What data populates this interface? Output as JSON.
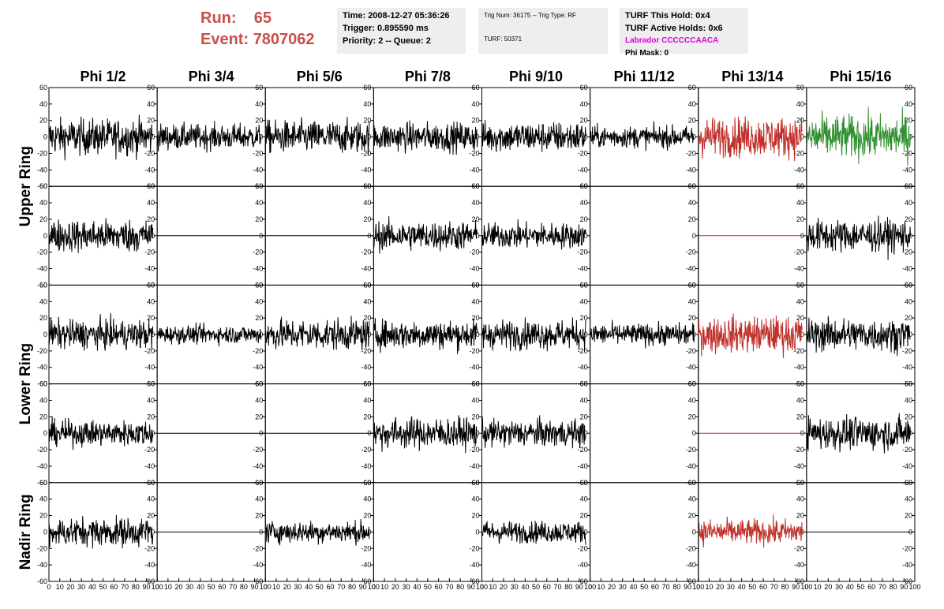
{
  "header": {
    "run_label": "Run:",
    "run_value": "65",
    "event_label": "Event:",
    "event_value": "7807062",
    "time": "Time: 2008-12-27 05:36:26",
    "trigger": "Trigger: 0.895590 ms",
    "priority": "Priority: 2 -- Queue: 2",
    "trig_num": "Trig Num: 36175 -- Trig Type: RF",
    "turf": "TURF: 50371",
    "turf_this_hold": "TURF This Hold: 0x4",
    "turf_active_holds": "TURF Active Holds: 0x6",
    "labrador": "Labrador CCCCCCAACA",
    "phi_mask": "Phi Mask: 0"
  },
  "colors": {
    "run_text": "#c9504a",
    "labrador": "#e000e0",
    "trace_default": "#000000",
    "trace_red": "#c0302b",
    "trace_green": "#2f8f2f"
  },
  "chart_data": {
    "type": "line",
    "columns": [
      "Phi 1/2",
      "Phi 3/4",
      "Phi 5/6",
      "Phi 7/8",
      "Phi 9/10",
      "Phi 11/12",
      "Phi 13/14",
      "Phi 15/16"
    ],
    "rows": [
      {
        "label": "Upper Ring",
        "rows": 2
      },
      {
        "label": "Lower Ring",
        "rows": 2
      },
      {
        "label": "Nadir Ring",
        "rows": 1
      }
    ],
    "xlim": [
      0,
      100
    ],
    "ylim": [
      -60,
      60
    ],
    "y_ticks": [
      -60,
      -40,
      -20,
      0,
      20,
      40,
      60
    ],
    "x_ticks": [
      0,
      10,
      20,
      30,
      40,
      50,
      60,
      70,
      80,
      90,
      100
    ],
    "panels": [
      [
        "noise",
        "noise",
        "noise",
        "noise",
        "noise",
        "noise",
        "noise-red",
        "noise-green"
      ],
      [
        "noise",
        "flat",
        "flat",
        "noise",
        "noise",
        "none",
        "flat-red",
        "noise"
      ],
      [
        "noise",
        "noise",
        "noise",
        "noise",
        "noise",
        "noise",
        "noise-red",
        "noise"
      ],
      [
        "noise",
        "flat",
        "flat",
        "noise",
        "noise",
        "none",
        "flat-red",
        "noise"
      ],
      [
        "noise",
        "flat",
        "noise",
        "none",
        "noise",
        "none",
        "noise-red",
        "flat"
      ]
    ],
    "amplitudes": [
      [
        20,
        14,
        18,
        16,
        17,
        12,
        22,
        24
      ],
      [
        18,
        0,
        0,
        16,
        14,
        0,
        0,
        18
      ],
      [
        16,
        10,
        17,
        16,
        16,
        12,
        20,
        18
      ],
      [
        14,
        0,
        0,
        17,
        15,
        0,
        0,
        18
      ],
      [
        16,
        0,
        12,
        0,
        12,
        0,
        14,
        0
      ]
    ]
  }
}
